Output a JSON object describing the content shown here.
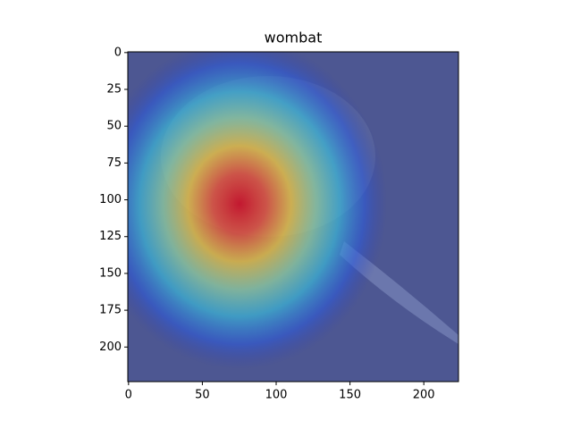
{
  "chart_data": {
    "type": "image",
    "title": "wombat",
    "xlim": [
      -0.5,
      223.5
    ],
    "ylim": [
      223.5,
      -0.5
    ],
    "xticks": [
      0,
      50,
      100,
      150,
      200
    ],
    "yticks": [
      0,
      25,
      50,
      75,
      100,
      125,
      150,
      175,
      200
    ]
  }
}
